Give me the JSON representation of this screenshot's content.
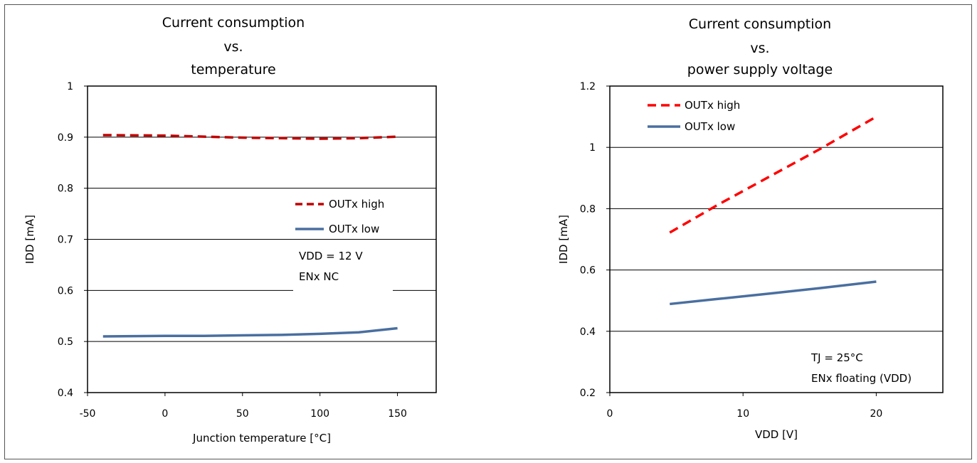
{
  "chart_data": [
    {
      "type": "line",
      "title_lines": [
        "Current consumption",
        "vs.",
        "temperature"
      ],
      "xlabel": "Junction temperature [°C]",
      "ylabel": "IDD [mA]",
      "xlim": [
        -50,
        175
      ],
      "ylim": [
        0.4,
        1.0
      ],
      "x_ticks": [
        -50,
        0,
        50,
        100,
        150
      ],
      "y_ticks": [
        0.4,
        0.5,
        0.6,
        0.7,
        0.8,
        0.9,
        1.0
      ],
      "y_tick_labels": [
        "0.4",
        "0.5",
        "0.6",
        "0.7",
        "0.8",
        "0.9",
        "1"
      ],
      "grid": "horizontal",
      "legend_position": "center-right",
      "annotations": [
        "VDD = 12 V",
        "ENx NC"
      ],
      "series": [
        {
          "name": "OUTx high",
          "style": "dashed",
          "color": "#c00000",
          "x": [
            -40,
            0,
            25,
            50,
            75,
            100,
            125,
            150
          ],
          "y": [
            0.904,
            0.903,
            0.901,
            0.899,
            0.898,
            0.897,
            0.898,
            0.901
          ]
        },
        {
          "name": "OUTx low",
          "style": "solid",
          "color": "#4a6fa0",
          "x": [
            -40,
            0,
            25,
            50,
            75,
            100,
            125,
            150
          ],
          "y": [
            0.51,
            0.511,
            0.511,
            0.512,
            0.513,
            0.515,
            0.518,
            0.526
          ]
        }
      ]
    },
    {
      "type": "line",
      "title_lines": [
        "Current consumption",
        "vs.",
        "power supply voltage"
      ],
      "xlabel": "VDD [V]",
      "ylabel": "IDD [mA]",
      "xlim": [
        0,
        25
      ],
      "ylim": [
        0.2,
        1.2
      ],
      "x_ticks": [
        0,
        10,
        20
      ],
      "y_ticks": [
        0.2,
        0.4,
        0.6,
        0.8,
        1.0,
        1.2
      ],
      "y_tick_labels": [
        "0.2",
        "0.4",
        "0.6",
        "0.8",
        "1",
        "1.2"
      ],
      "grid": "horizontal",
      "legend_position": "top-left",
      "annotations": [
        "TJ = 25°C",
        "ENx floating (VDD)"
      ],
      "series": [
        {
          "name": "OUTx high",
          "style": "dashed",
          "color": "#ff0000",
          "x": [
            4.5,
            8,
            12,
            16,
            20
          ],
          "y": [
            0.722,
            0.81,
            0.905,
            1.0,
            1.1
          ]
        },
        {
          "name": "OUTx low",
          "style": "solid",
          "color": "#4a6fa0",
          "x": [
            4.5,
            8,
            12,
            16,
            20
          ],
          "y": [
            0.489,
            0.505,
            0.523,
            0.542,
            0.562
          ]
        }
      ]
    }
  ]
}
